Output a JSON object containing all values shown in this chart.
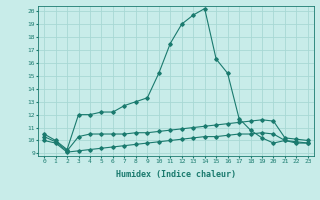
{
  "xlabel": "Humidex (Indice chaleur)",
  "background_color": "#c8ece9",
  "grid_color": "#a8d8d4",
  "line_color": "#1a7a6e",
  "xlim": [
    -0.5,
    23.5
  ],
  "ylim": [
    8.8,
    20.4
  ],
  "xticks": [
    0,
    1,
    2,
    3,
    4,
    5,
    6,
    7,
    8,
    9,
    10,
    11,
    12,
    13,
    14,
    15,
    16,
    17,
    18,
    19,
    20,
    21,
    22,
    23
  ],
  "yticks": [
    9,
    10,
    11,
    12,
    13,
    14,
    15,
    16,
    17,
    18,
    19,
    20
  ],
  "series1_x": [
    0,
    1,
    2,
    3,
    4,
    5,
    6,
    7,
    8,
    9,
    10,
    11,
    12,
    13,
    14,
    15,
    16,
    17,
    18,
    19,
    20,
    21,
    22,
    23
  ],
  "series1_y": [
    10.5,
    10.0,
    9.3,
    12.0,
    12.0,
    12.2,
    12.2,
    12.7,
    13.0,
    13.3,
    15.2,
    17.5,
    19.0,
    19.7,
    20.2,
    16.3,
    15.2,
    11.7,
    10.8,
    10.2,
    9.8,
    10.0,
    9.8,
    9.8
  ],
  "series2_x": [
    0,
    1,
    2,
    3,
    4,
    5,
    6,
    7,
    8,
    9,
    10,
    11,
    12,
    13,
    14,
    15,
    16,
    17,
    18,
    19,
    20,
    21,
    22,
    23
  ],
  "series2_y": [
    10.3,
    9.9,
    9.2,
    10.3,
    10.5,
    10.5,
    10.5,
    10.5,
    10.6,
    10.6,
    10.7,
    10.8,
    10.9,
    11.0,
    11.1,
    11.2,
    11.3,
    11.4,
    11.5,
    11.6,
    11.5,
    10.2,
    10.1,
    10.0
  ],
  "series3_x": [
    0,
    1,
    2,
    3,
    4,
    5,
    6,
    7,
    8,
    9,
    10,
    11,
    12,
    13,
    14,
    15,
    16,
    17,
    18,
    19,
    20,
    21,
    22,
    23
  ],
  "series3_y": [
    10.0,
    9.8,
    9.1,
    9.2,
    9.3,
    9.4,
    9.5,
    9.6,
    9.7,
    9.8,
    9.9,
    10.0,
    10.1,
    10.2,
    10.3,
    10.3,
    10.4,
    10.5,
    10.5,
    10.6,
    10.5,
    10.0,
    9.9,
    9.8
  ]
}
